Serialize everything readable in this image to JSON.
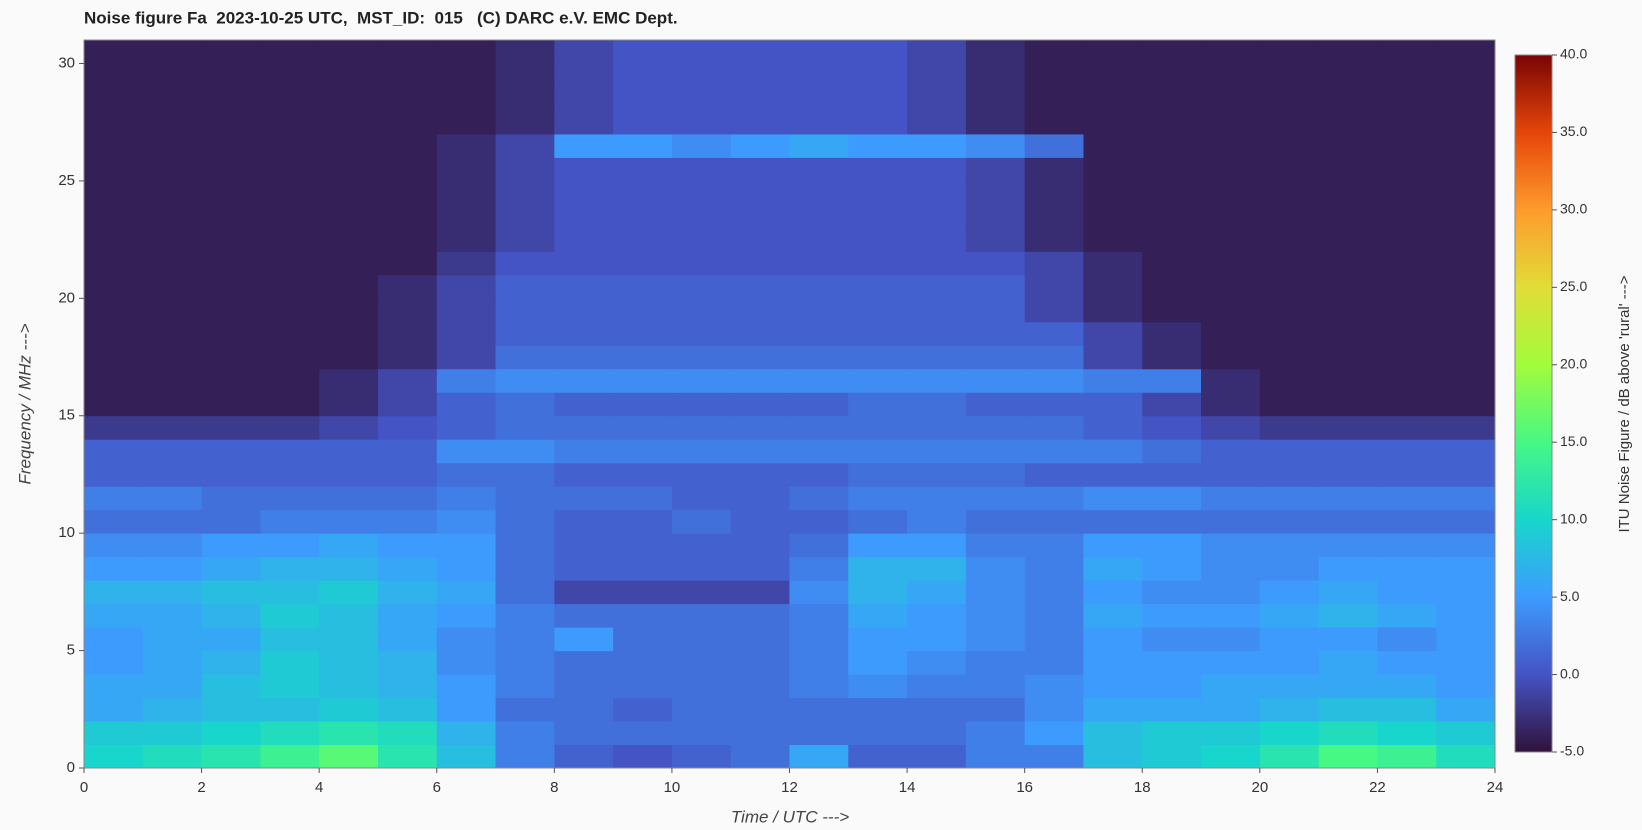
{
  "chart_data": {
    "type": "heatmap",
    "title": "Noise figure Fa  2023-10-25 UTC,  MST_ID:  015   (C) DARC e.V. EMC Dept.",
    "xlabel": "Time / UTC --->",
    "ylabel": "Frequency / MHz --->",
    "colorbar_label": "ITU Noise Figure / dB above 'rural' --->",
    "x": [
      0.5,
      1.5,
      2.5,
      3.5,
      4.5,
      5.5,
      6.5,
      7.5,
      8.5,
      9.5,
      10.5,
      11.5,
      12.5,
      13.5,
      14.5,
      15.5,
      16.5,
      17.5,
      18.5,
      19.5,
      20.5,
      21.5,
      22.5,
      23.5
    ],
    "y": [
      0.5,
      1.5,
      2.5,
      3.5,
      4.5,
      5.5,
      6.5,
      7.5,
      8.5,
      9.5,
      10.5,
      11.5,
      12.5,
      13.5,
      14.5,
      15.5,
      16.5,
      17.5,
      18.5,
      19.5,
      20.5,
      21.5,
      22.5,
      23.5,
      24.5,
      25.5,
      26.5,
      27.5,
      28.5,
      29.5,
      30.5
    ],
    "values": [
      [
        10,
        11,
        12,
        14,
        16,
        12,
        8,
        3,
        1,
        0,
        1,
        2,
        6,
        1,
        1,
        3,
        3,
        8,
        9,
        10,
        12,
        15,
        14,
        11
      ],
      [
        9,
        9,
        10,
        11,
        12,
        11,
        7,
        3,
        2,
        2,
        2,
        2,
        2,
        2,
        2,
        3,
        5,
        8,
        9,
        9,
        10,
        11,
        10,
        9
      ],
      [
        6,
        7,
        8,
        8,
        9,
        8,
        5,
        2,
        2,
        1,
        2,
        2,
        2,
        2,
        2,
        2,
        4,
        6,
        6,
        6,
        7,
        8,
        8,
        6
      ],
      [
        6,
        6,
        8,
        9,
        8,
        7,
        5,
        3,
        2,
        2,
        2,
        2,
        3,
        4,
        3,
        3,
        4,
        5,
        5,
        6,
        6,
        6,
        6,
        5
      ],
      [
        5,
        6,
        7,
        9,
        8,
        7,
        4,
        3,
        2,
        2,
        2,
        2,
        3,
        5,
        4,
        3,
        3,
        5,
        5,
        5,
        5,
        6,
        5,
        5
      ],
      [
        5,
        6,
        6,
        8,
        8,
        6,
        4,
        3,
        5,
        2,
        2,
        2,
        3,
        5,
        5,
        4,
        3,
        5,
        4,
        4,
        5,
        5,
        4,
        5
      ],
      [
        6,
        6,
        7,
        9,
        8,
        6,
        5,
        3,
        2,
        2,
        2,
        2,
        3,
        6,
        5,
        4,
        3,
        6,
        5,
        5,
        6,
        7,
        6,
        5
      ],
      [
        7,
        7,
        8,
        8,
        9,
        7,
        6,
        2,
        -1,
        -1,
        -1,
        -1,
        4,
        7,
        6,
        4,
        3,
        5,
        4,
        4,
        5,
        6,
        5,
        5
      ],
      [
        5,
        5,
        6,
        7,
        7,
        6,
        5,
        2,
        1,
        1,
        1,
        1,
        3,
        7,
        7,
        4,
        3,
        6,
        5,
        4,
        4,
        5,
        5,
        5
      ],
      [
        4,
        4,
        5,
        5,
        6,
        5,
        5,
        2,
        1,
        1,
        1,
        1,
        2,
        5,
        5,
        3,
        3,
        5,
        5,
        4,
        4,
        4,
        4,
        4
      ],
      [
        2,
        2,
        2,
        3,
        3,
        3,
        4,
        2,
        1,
        1,
        2,
        1,
        1,
        2,
        3,
        2,
        2,
        2,
        2,
        2,
        2,
        2,
        2,
        2
      ],
      [
        3,
        3,
        2,
        2,
        2,
        2,
        3,
        2,
        2,
        2,
        1,
        1,
        2,
        3,
        3,
        3,
        3,
        4,
        4,
        3,
        3,
        3,
        3,
        3
      ],
      [
        1,
        1,
        1,
        1,
        1,
        1,
        2,
        2,
        1,
        1,
        1,
        1,
        1,
        2,
        2,
        2,
        1,
        1,
        1,
        1,
        1,
        1,
        1,
        1
      ],
      [
        1,
        1,
        1,
        1,
        1,
        1,
        4,
        4,
        3,
        3,
        3,
        3,
        3,
        3,
        3,
        3,
        3,
        3,
        2,
        1,
        1,
        1,
        1,
        1
      ],
      [
        -2,
        -2,
        -2,
        -2,
        -1,
        0,
        1,
        2,
        2,
        2,
        2,
        2,
        2,
        2,
        2,
        2,
        2,
        1,
        0,
        -1,
        -2,
        -2,
        -2,
        -2
      ],
      [
        -4,
        -4,
        -4,
        -4,
        -3,
        -1,
        1,
        2,
        1,
        1,
        1,
        1,
        1,
        2,
        2,
        1,
        1,
        1,
        -1,
        -3,
        -4,
        -4,
        -4,
        -4
      ],
      [
        -4,
        -4,
        -4,
        -4,
        -3,
        -1,
        3,
        4,
        4,
        4,
        4,
        4,
        4,
        4,
        4,
        4,
        4,
        3,
        3,
        -3,
        -4,
        -4,
        -4,
        -4
      ],
      [
        -4,
        -4,
        -4,
        -4,
        -4,
        -3,
        -1,
        2,
        2,
        2,
        2,
        2,
        2,
        2,
        2,
        2,
        2,
        -1,
        -3,
        -4,
        -4,
        -4,
        -4,
        -4
      ],
      [
        -4,
        -4,
        -4,
        -4,
        -4,
        -3,
        -1,
        1,
        1,
        1,
        1,
        1,
        1,
        1,
        1,
        1,
        1,
        -1,
        -3,
        -4,
        -4,
        -4,
        -4,
        -4
      ],
      [
        -4,
        -4,
        -4,
        -4,
        -4,
        -3,
        -1,
        1,
        1,
        1,
        1,
        1,
        1,
        1,
        1,
        1,
        -1,
        -3,
        -4,
        -4,
        -4,
        -4,
        -4,
        -4
      ],
      [
        -4,
        -4,
        -4,
        -4,
        -4,
        -3,
        -1,
        1,
        1,
        1,
        1,
        1,
        1,
        1,
        1,
        1,
        -1,
        -3,
        -4,
        -4,
        -4,
        -4,
        -4,
        -4
      ],
      [
        -4,
        -4,
        -4,
        -4,
        -4,
        -4,
        -2,
        0,
        0,
        0,
        0,
        0,
        0,
        0,
        0,
        0,
        -1,
        -3,
        -4,
        -4,
        -4,
        -4,
        -4,
        -4
      ],
      [
        -4,
        -4,
        -4,
        -4,
        -4,
        -4,
        -3,
        -1,
        0,
        0,
        0,
        0,
        0,
        0,
        0,
        -1,
        -3,
        -4,
        -4,
        -4,
        -4,
        -4,
        -4,
        -4
      ],
      [
        -4,
        -4,
        -4,
        -4,
        -4,
        -4,
        -3,
        -1,
        0,
        0,
        0,
        0,
        0,
        0,
        0,
        -1,
        -3,
        -4,
        -4,
        -4,
        -4,
        -4,
        -4,
        -4
      ],
      [
        -4,
        -4,
        -4,
        -4,
        -4,
        -4,
        -3,
        -1,
        0,
        0,
        0,
        0,
        0,
        0,
        0,
        -1,
        -3,
        -4,
        -4,
        -4,
        -4,
        -4,
        -4,
        -4
      ],
      [
        -4,
        -4,
        -4,
        -4,
        -4,
        -4,
        -3,
        -1,
        0,
        0,
        0,
        0,
        0,
        0,
        0,
        -1,
        -3,
        -4,
        -4,
        -4,
        -4,
        -4,
        -4,
        -4
      ],
      [
        -4,
        -4,
        -4,
        -4,
        -4,
        -4,
        -3,
        -1,
        5,
        5,
        4,
        5,
        6,
        5,
        5,
        4,
        2,
        -4,
        -4,
        -4,
        -4,
        -4,
        -4,
        -4
      ],
      [
        -4,
        -4,
        -4,
        -4,
        -4,
        -4,
        -4,
        -3,
        -1,
        0,
        0,
        0,
        0,
        0,
        -1,
        -3,
        -4,
        -4,
        -4,
        -4,
        -4,
        -4,
        -4,
        -4
      ],
      [
        -4,
        -4,
        -4,
        -4,
        -4,
        -4,
        -4,
        -3,
        -1,
        0,
        0,
        0,
        0,
        0,
        -1,
        -3,
        -4,
        -4,
        -4,
        -4,
        -4,
        -4,
        -4,
        -4
      ],
      [
        -4,
        -4,
        -4,
        -4,
        -4,
        -4,
        -4,
        -3,
        -1,
        0,
        0,
        0,
        0,
        0,
        -1,
        -3,
        -4,
        -4,
        -4,
        -4,
        -4,
        -4,
        -4,
        -4
      ],
      [
        -4,
        -4,
        -4,
        -4,
        -4,
        -4,
        -4,
        -3,
        -1,
        0,
        0,
        0,
        0,
        0,
        -1,
        -3,
        -4,
        -4,
        -4,
        -4,
        -4,
        -4,
        -4,
        -4
      ]
    ],
    "xlim": [
      0,
      24
    ],
    "ylim": [
      0,
      31
    ],
    "xticks": [
      0,
      2,
      4,
      6,
      8,
      10,
      12,
      14,
      16,
      18,
      20,
      22,
      24
    ],
    "yticks": [
      0,
      5,
      10,
      15,
      20,
      25,
      30
    ],
    "clim": [
      -5,
      40
    ],
    "cticks": [
      {
        "value": -5,
        "label": "-5.0"
      },
      {
        "value": 0,
        "label": "0.0"
      },
      {
        "value": 5,
        "label": "5.0"
      },
      {
        "value": 10,
        "label": "10.0"
      },
      {
        "value": 15,
        "label": "15.0"
      },
      {
        "value": 20,
        "label": "20.0"
      },
      {
        "value": 25,
        "label": "25.0"
      },
      {
        "value": 30,
        "label": "30.0"
      },
      {
        "value": 35,
        "label": "35.0"
      },
      {
        "value": 40,
        "label": "40.0"
      }
    ],
    "colorscale": [
      "#30123b",
      "#4454c4",
      "#3e9bfe",
      "#18d6cb",
      "#46f884",
      "#a2fc3c",
      "#e1dd37",
      "#fe9b2d",
      "#e4460a",
      "#7a0403"
    ]
  }
}
